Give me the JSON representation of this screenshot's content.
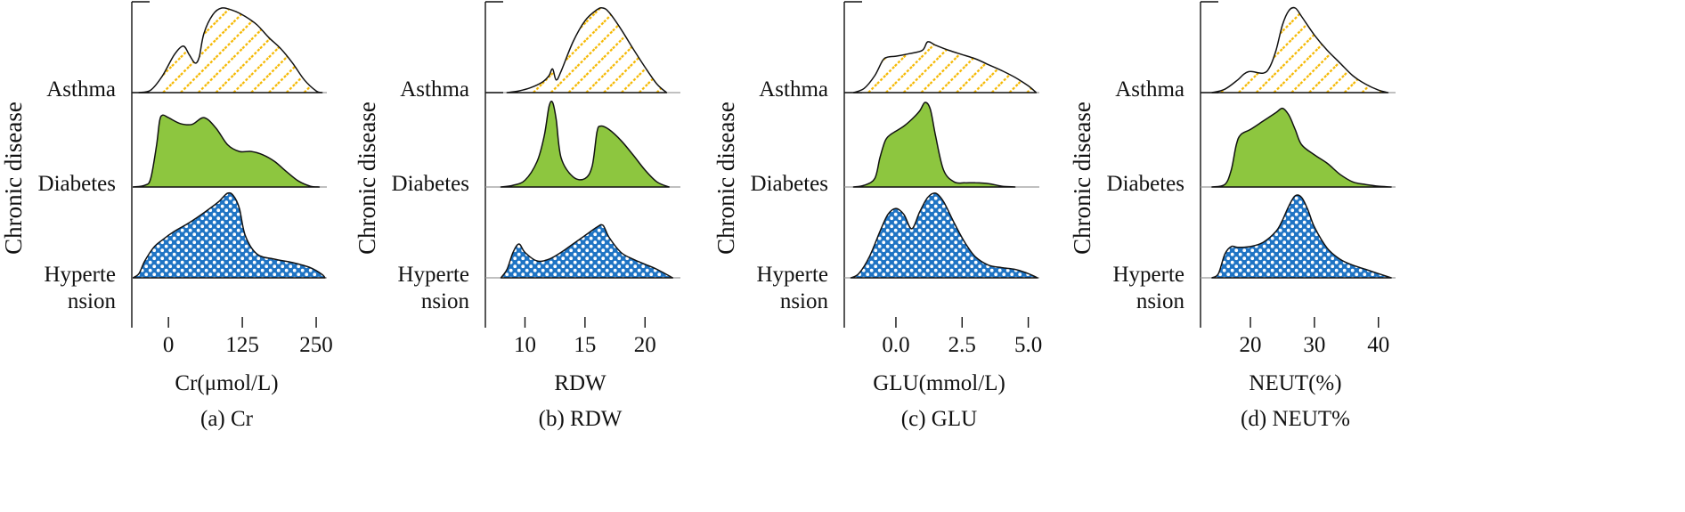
{
  "colors": {
    "asthma_fill": "#ffffff",
    "asthma_hatch": "#f5b800",
    "diabetes_fill": "#8dc63f",
    "hypertension_fill": "#1f74c4",
    "hypertension_dots": "#ffffff",
    "outline": "#111111",
    "axis": "#111111",
    "baseline": "#9a9a9a"
  },
  "chart_data": [
    {
      "type": "area",
      "caption": "(a) Cr",
      "xlabel": "Cr(μmol/L)",
      "ylabel": "Chronic disease",
      "xlim": [
        -62,
        265
      ],
      "xticks": [
        0,
        125,
        250
      ],
      "xtick_labels": [
        "0",
        "125",
        "250"
      ],
      "categories": [
        "Asthma",
        "Diabetes",
        "Hyperte\nnsion"
      ],
      "series": [
        {
          "name": "Asthma",
          "pattern": "hatch",
          "x": [
            -50,
            -30,
            -10,
            10,
            25,
            35,
            45,
            52,
            60,
            75,
            90,
            110,
            130,
            150,
            170,
            190,
            210,
            230,
            250,
            260
          ],
          "y": [
            0,
            0.03,
            0.2,
            0.45,
            0.55,
            0.45,
            0.35,
            0.42,
            0.7,
            0.92,
            1.0,
            0.97,
            0.9,
            0.8,
            0.65,
            0.52,
            0.35,
            0.15,
            0.02,
            0
          ]
        },
        {
          "name": "Diabetes",
          "pattern": "solid",
          "x": [
            -60,
            -40,
            -30,
            -20,
            -15,
            -10,
            0,
            20,
            40,
            60,
            80,
            100,
            120,
            140,
            160,
            180,
            200,
            220,
            240,
            255
          ],
          "y": [
            0,
            0.02,
            0.1,
            0.5,
            0.78,
            0.85,
            0.82,
            0.75,
            0.74,
            0.82,
            0.7,
            0.5,
            0.42,
            0.42,
            0.38,
            0.3,
            0.18,
            0.07,
            0.01,
            0
          ]
        },
        {
          "name": "Hypertension",
          "pattern": "dots",
          "x": [
            -60,
            -50,
            -40,
            -25,
            -10,
            10,
            30,
            50,
            70,
            85,
            100,
            110,
            120,
            130,
            150,
            180,
            210,
            240,
            260,
            265
          ],
          "y": [
            0,
            0.05,
            0.2,
            0.36,
            0.45,
            0.55,
            0.63,
            0.72,
            0.82,
            0.9,
            1.0,
            0.97,
            0.82,
            0.5,
            0.28,
            0.22,
            0.18,
            0.12,
            0.04,
            0
          ]
        }
      ]
    },
    {
      "type": "area",
      "caption": "(b) RDW",
      "xlabel": "RDW",
      "ylabel": "Chronic disease",
      "xlim": [
        6.7,
        22.8
      ],
      "xticks": [
        10,
        15,
        20
      ],
      "xtick_labels": [
        "10",
        "15",
        "20"
      ],
      "categories": [
        "Asthma",
        "Diabetes",
        "Hyperte\nnsion"
      ],
      "series": [
        {
          "name": "Asthma",
          "pattern": "hatch",
          "x": [
            8.5,
            9.5,
            10.5,
            11.5,
            12.0,
            12.3,
            12.6,
            13.0,
            14.0,
            15.0,
            16.0,
            16.5,
            17.0,
            18.0,
            19.0,
            20.0,
            21.0,
            21.8
          ],
          "y": [
            0,
            0.02,
            0.06,
            0.13,
            0.2,
            0.28,
            0.15,
            0.25,
            0.6,
            0.85,
            0.98,
            1.0,
            0.95,
            0.75,
            0.52,
            0.3,
            0.1,
            0
          ]
        },
        {
          "name": "Diabetes",
          "pattern": "solid",
          "x": [
            8.0,
            9.0,
            10.0,
            11.0,
            11.6,
            12.0,
            12.3,
            12.6,
            13.0,
            14.0,
            15.0,
            15.6,
            16.0,
            16.3,
            17.0,
            18.0,
            19.0,
            20.0,
            21.0,
            22.0
          ],
          "y": [
            0,
            0.02,
            0.08,
            0.3,
            0.6,
            0.95,
            1.0,
            0.8,
            0.35,
            0.12,
            0.1,
            0.25,
            0.65,
            0.72,
            0.68,
            0.55,
            0.38,
            0.2,
            0.06,
            0
          ]
        },
        {
          "name": "Hypertension",
          "pattern": "dots",
          "x": [
            8.0,
            8.5,
            9.0,
            9.5,
            10.0,
            11.0,
            12.0,
            13.0,
            14.0,
            15.0,
            16.0,
            16.5,
            17.0,
            18.0,
            19.0,
            20.0,
            21.0,
            22.3
          ],
          "y": [
            0,
            0.1,
            0.3,
            0.4,
            0.3,
            0.2,
            0.22,
            0.3,
            0.4,
            0.5,
            0.6,
            0.62,
            0.48,
            0.3,
            0.22,
            0.16,
            0.1,
            0
          ]
        }
      ]
    },
    {
      "type": "area",
      "caption": "(c) GLU",
      "xlabel": "GLU(mmol/L)",
      "ylabel": "Chronic disease",
      "xlim": [
        -1.95,
        5.35
      ],
      "xticks": [
        0,
        2.5,
        5
      ],
      "xtick_labels": [
        "0.0",
        "2.5",
        "5.0"
      ],
      "categories": [
        "Asthma",
        "Diabetes",
        "Hyperte\nnsion"
      ],
      "series": [
        {
          "name": "Asthma",
          "pattern": "hatch",
          "x": [
            -1.6,
            -1.2,
            -0.8,
            -0.5,
            -0.3,
            0.0,
            0.5,
            1.0,
            1.2,
            1.5,
            2.0,
            2.5,
            3.0,
            3.5,
            4.0,
            4.5,
            5.0,
            5.3
          ],
          "y": [
            0,
            0.05,
            0.2,
            0.38,
            0.42,
            0.43,
            0.46,
            0.5,
            0.6,
            0.56,
            0.5,
            0.45,
            0.4,
            0.33,
            0.26,
            0.18,
            0.08,
            0
          ]
        },
        {
          "name": "Diabetes",
          "pattern": "solid",
          "x": [
            -1.6,
            -1.2,
            -0.8,
            -0.6,
            -0.4,
            -0.2,
            0.0,
            0.3,
            0.6,
            0.9,
            1.1,
            1.3,
            1.5,
            1.8,
            2.2,
            2.6,
            3.0,
            3.5,
            4.0,
            4.5
          ],
          "y": [
            0,
            0.02,
            0.1,
            0.35,
            0.55,
            0.62,
            0.66,
            0.72,
            0.8,
            0.9,
            1.0,
            0.92,
            0.6,
            0.2,
            0.06,
            0.05,
            0.05,
            0.04,
            0.01,
            0
          ]
        },
        {
          "name": "Hypertension",
          "pattern": "dots",
          "x": [
            -1.7,
            -1.4,
            -1.0,
            -0.6,
            -0.3,
            0.0,
            0.3,
            0.6,
            0.9,
            1.2,
            1.5,
            1.8,
            2.2,
            2.6,
            3.0,
            3.5,
            4.0,
            4.5,
            5.0,
            5.35
          ],
          "y": [
            0,
            0.05,
            0.25,
            0.55,
            0.75,
            0.82,
            0.75,
            0.58,
            0.78,
            0.95,
            1.0,
            0.9,
            0.65,
            0.42,
            0.25,
            0.15,
            0.12,
            0.1,
            0.05,
            0
          ]
        }
      ]
    },
    {
      "type": "area",
      "caption": "(d) NEUT%",
      "xlabel": "NEUT(%)",
      "ylabel": "Chronic disease",
      "xlim": [
        12.2,
        42.4
      ],
      "xticks": [
        20,
        30,
        40
      ],
      "xtick_labels": [
        "20",
        "30",
        "40"
      ],
      "categories": [
        "Asthma",
        "Diabetes",
        "Hyperte\nnsion"
      ],
      "series": [
        {
          "name": "Asthma",
          "pattern": "hatch",
          "x": [
            14.0,
            16.0,
            18.0,
            19.0,
            20.0,
            22.0,
            23.0,
            24.0,
            25.0,
            26.0,
            27.0,
            28.0,
            30.0,
            32.0,
            34.0,
            36.0,
            38.0,
            40.0,
            41.5
          ],
          "y": [
            0,
            0.04,
            0.15,
            0.22,
            0.25,
            0.23,
            0.3,
            0.5,
            0.8,
            0.97,
            1.0,
            0.9,
            0.68,
            0.5,
            0.35,
            0.2,
            0.1,
            0.03,
            0
          ]
        },
        {
          "name": "Diabetes",
          "pattern": "solid",
          "x": [
            14.0,
            16.0,
            17.0,
            17.8,
            18.5,
            20.0,
            22.0,
            24.0,
            25.0,
            26.0,
            27.0,
            28.0,
            30.0,
            32.0,
            34.0,
            36.0,
            38.0,
            40.0,
            42.0
          ],
          "y": [
            0,
            0.03,
            0.2,
            0.5,
            0.62,
            0.68,
            0.78,
            0.88,
            0.93,
            0.85,
            0.68,
            0.5,
            0.38,
            0.28,
            0.15,
            0.06,
            0.03,
            0.01,
            0
          ]
        },
        {
          "name": "Hypertension",
          "pattern": "dots",
          "x": [
            14.0,
            15.0,
            16.0,
            17.0,
            18.0,
            20.0,
            22.0,
            24.0,
            25.0,
            26.0,
            27.0,
            28.0,
            29.0,
            30.0,
            32.0,
            34.0,
            36.0,
            38.0,
            40.0,
            42.0
          ],
          "y": [
            0,
            0.05,
            0.28,
            0.37,
            0.36,
            0.37,
            0.42,
            0.55,
            0.68,
            0.85,
            0.97,
            0.95,
            0.8,
            0.6,
            0.35,
            0.22,
            0.15,
            0.1,
            0.05,
            0
          ]
        }
      ]
    }
  ]
}
